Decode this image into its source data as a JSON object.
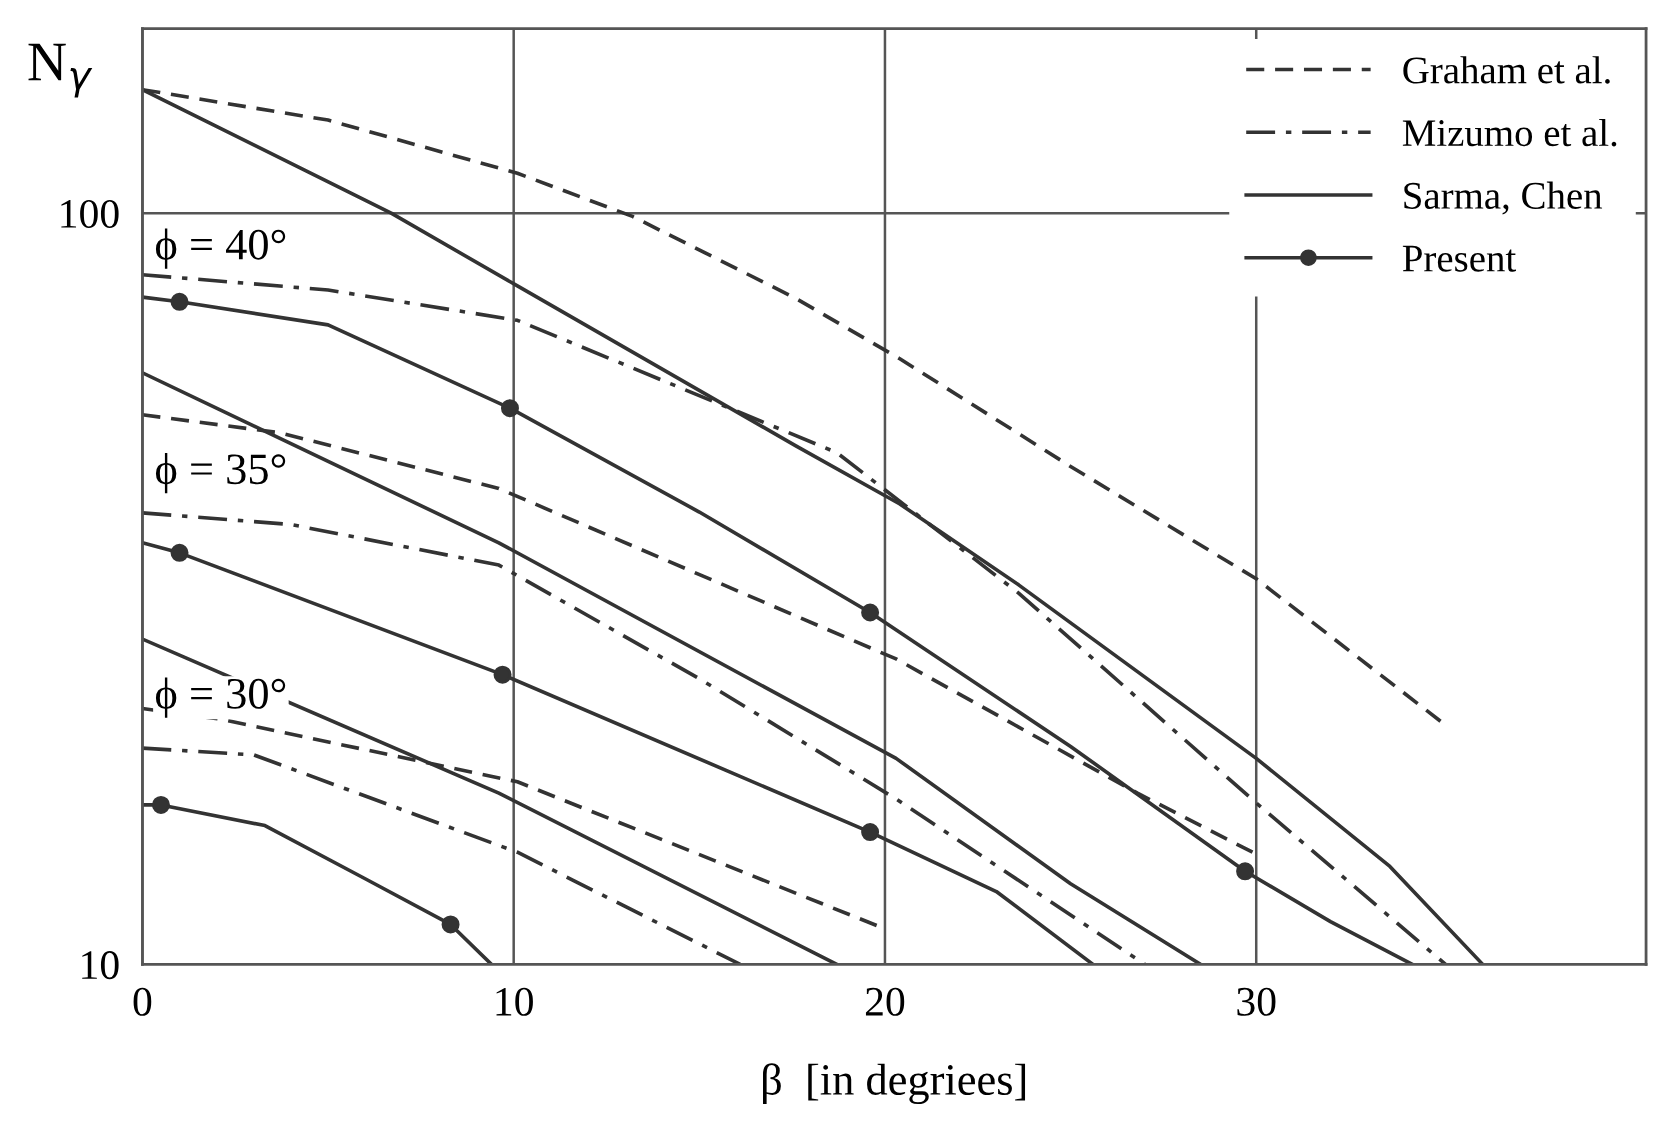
{
  "chart_data": {
    "type": "line",
    "xlabel": "β  [in degriees]",
    "ylabel": "N$_{γ}$",
    "log": "y",
    "xlim": [
      0,
      40.5
    ],
    "ylim": [
      10,
      176
    ],
    "xticks": [
      0,
      10,
      20,
      30
    ],
    "yticks": [
      10,
      100
    ],
    "grid": true,
    "legend": "top right",
    "annotations": [
      "ϕ = 40°",
      "ϕ = 35°",
      "ϕ = 30°"
    ],
    "series": [
      {
        "name": "Graham et al.",
        "color": "#333333",
        "line_style": "dashed",
        "x": [
          0,
          5,
          10.1,
          13.2,
          17.6,
          20.4,
          25,
          30,
          35
        ],
        "values": [
          146,
          133,
          113,
          99,
          77,
          64,
          46,
          32.6,
          21
        ]
      },
      {
        "name": "Mizumo et al.",
        "color": "#333333",
        "line_style": "dashdot",
        "x": [
          0,
          5,
          10.1,
          18.7,
          23.6,
          30,
          35.1
        ],
        "values": [
          82.8,
          79,
          72,
          48,
          31.2,
          16.4,
          10
        ]
      },
      {
        "name": "Sarma, Chen",
        "color": "#333333",
        "line_style": "solid",
        "x": [
          0,
          6.7,
          10.1,
          17.6,
          20.4,
          23.6,
          30,
          33.6,
          36.1
        ],
        "values": [
          146,
          100,
          80,
          49,
          41,
          32,
          18.8,
          13.5,
          10
        ]
      },
      {
        "name": "Present",
        "color": "#333333",
        "line_style": "solid",
        "x": [
          0,
          1,
          5,
          9.9,
          15,
          19.6,
          25,
          29.7,
          32,
          34.2
        ],
        "values": [
          77.3,
          76.2,
          71,
          55,
          40,
          29.4,
          19.5,
          13.3,
          11.4,
          10
        ]
      },
      {
        "type": "scatter",
        "color": "#333333",
        "marker": "circle",
        "x": [
          1,
          9.9,
          19.6,
          29.7
        ],
        "values": [
          76.2,
          55,
          29.4,
          13.3
        ]
      },
      {
        "color": "#333333",
        "line_style": "dashed",
        "x": [
          0,
          3.7,
          9.6,
          20.3,
          26.8,
          29.9
        ],
        "values": [
          53.9,
          51,
          43,
          25.5,
          16.9,
          14.1
        ]
      },
      {
        "color": "#333333",
        "line_style": "dashdot",
        "x": [
          0,
          4,
          9.6,
          15,
          20.3,
          27
        ],
        "values": [
          39.9,
          38.5,
          34,
          24,
          16.6,
          10
        ]
      },
      {
        "color": "#333333",
        "line_style": "solid",
        "x": [
          0,
          9.6,
          20.3,
          25,
          28.5
        ],
        "values": [
          61.3,
          36.4,
          18.8,
          12.8,
          10
        ]
      },
      {
        "color": "#333333",
        "line_style": "solid",
        "x": [
          0,
          1,
          9.7,
          19.6,
          23,
          25.6
        ],
        "values": [
          36.4,
          35.3,
          24.3,
          15,
          12.5,
          10
        ]
      },
      {
        "type": "scatter",
        "color": "#333333",
        "marker": "circle",
        "x": [
          1,
          9.7,
          19.6
        ],
        "values": [
          35.3,
          24.3,
          15
        ]
      },
      {
        "color": "#333333",
        "line_style": "dashed",
        "x": [
          0,
          2.1,
          10.1,
          19.9
        ],
        "values": [
          21.9,
          21.2,
          17.5,
          11.2
        ]
      },
      {
        "color": "#333333",
        "line_style": "dashdot",
        "x": [
          0,
          3,
          10.1,
          16.1
        ],
        "values": [
          19.4,
          19,
          14.1,
          10
        ]
      },
      {
        "color": "#333333",
        "line_style": "solid",
        "x": [
          0,
          9.6,
          18.7
        ],
        "values": [
          27.1,
          16.9,
          10
        ]
      },
      {
        "color": "#333333",
        "line_style": "solid",
        "x": [
          0,
          0.5,
          3.3,
          6,
          8.3,
          9.4
        ],
        "values": [
          16.3,
          16.3,
          15.3,
          13,
          11.3,
          10
        ]
      },
      {
        "type": "scatter",
        "color": "#333333",
        "marker": "circle",
        "x": [
          0.5,
          8.3
        ],
        "values": [
          16.3,
          11.3
        ]
      }
    ]
  }
}
